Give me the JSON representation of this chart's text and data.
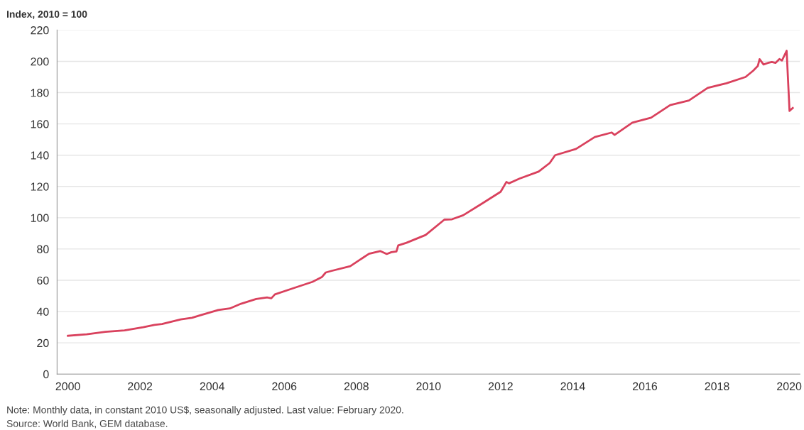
{
  "chart_data": {
    "type": "line",
    "ylabel": "Index, 2010 = 100",
    "annotations": [
      "Note: Monthly data, in constant 2010 US$, seasonally adjusted. Last value: February 2020.",
      "Source: World Bank, GEM database."
    ],
    "x": [
      2000.0,
      2000.52,
      2001.04,
      2001.57,
      2002.09,
      2002.4,
      2002.61,
      2003.13,
      2003.44,
      2003.65,
      2004.17,
      2004.49,
      2004.8,
      2005.22,
      2005.53,
      2005.64,
      2005.74,
      2006.26,
      2006.78,
      2007.04,
      2007.15,
      2007.31,
      2007.83,
      2008.35,
      2008.66,
      2008.84,
      2008.97,
      2009.11,
      2009.16,
      2009.39,
      2009.92,
      2010.44,
      2010.65,
      2010.96,
      2011.48,
      2012.0,
      2012.16,
      2012.23,
      2012.52,
      2013.05,
      2013.36,
      2013.51,
      2014.09,
      2014.61,
      2015.08,
      2015.16,
      2015.65,
      2016.17,
      2016.7,
      2017.22,
      2017.74,
      2018.26,
      2018.79,
      2019.0,
      2019.13,
      2019.18,
      2019.29,
      2019.41,
      2019.52,
      2019.62,
      2019.73,
      2019.8,
      2019.93,
      2020.01,
      2020.1
    ],
    "series": [
      {
        "color": "#d9415d",
        "values": [
          24.5,
          25.5,
          27,
          28,
          30,
          31.5,
          32,
          35,
          36,
          37.5,
          41,
          42,
          45,
          48,
          49,
          48.5,
          51,
          55,
          59,
          62,
          65,
          66,
          69,
          77,
          78.7,
          76.8,
          78,
          78.4,
          82.3,
          84,
          89,
          98.8,
          99,
          101.6,
          109,
          116.6,
          122.9,
          122,
          125,
          129.5,
          135,
          140,
          144,
          151.6,
          154.5,
          153,
          160.8,
          164,
          172,
          175,
          183,
          186,
          190,
          194,
          197,
          201.4,
          198,
          199,
          199.6,
          199,
          201.5,
          200.5,
          206.8,
          168.3,
          170.2
        ]
      }
    ],
    "xlim": [
      1999.7,
      2020.3
    ],
    "xticks": [
      2000,
      2002,
      2004,
      2006,
      2008,
      2010,
      2012,
      2014,
      2016,
      2018,
      2020
    ],
    "ylim": [
      0,
      220
    ],
    "yticks": [
      0,
      20,
      40,
      60,
      80,
      100,
      120,
      140,
      160,
      180,
      200,
      220
    ],
    "grid": "y",
    "legend": false,
    "marker": "none",
    "line_style": "solid"
  }
}
